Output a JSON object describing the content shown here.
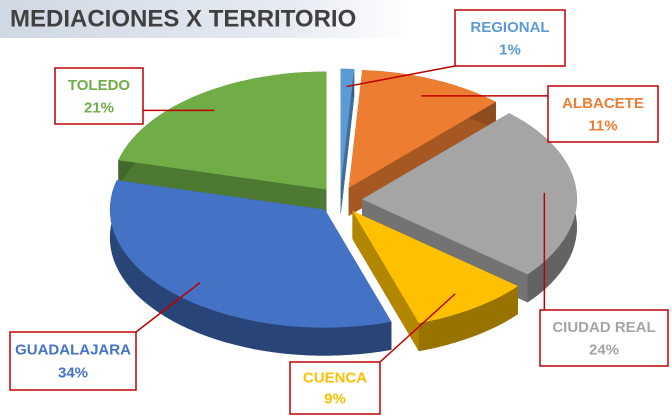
{
  "chart_data": {
    "type": "pie",
    "title": "MEDIACIONES X TERRITORIO",
    "categories": [
      "REGIONAL",
      "ALBACETE",
      "CIUDAD REAL",
      "CUENCA",
      "GUADALAJARA",
      "TOLEDO"
    ],
    "values": [
      1,
      11,
      24,
      9,
      34,
      21
    ],
    "value_labels": [
      "1%",
      "11%",
      "24%",
      "9%",
      "34%",
      "21%"
    ],
    "colors": [
      "#5b9bd5",
      "#ed7d31",
      "#a5a5a5",
      "#ffc000",
      "#4472c4",
      "#70ad47"
    ]
  }
}
